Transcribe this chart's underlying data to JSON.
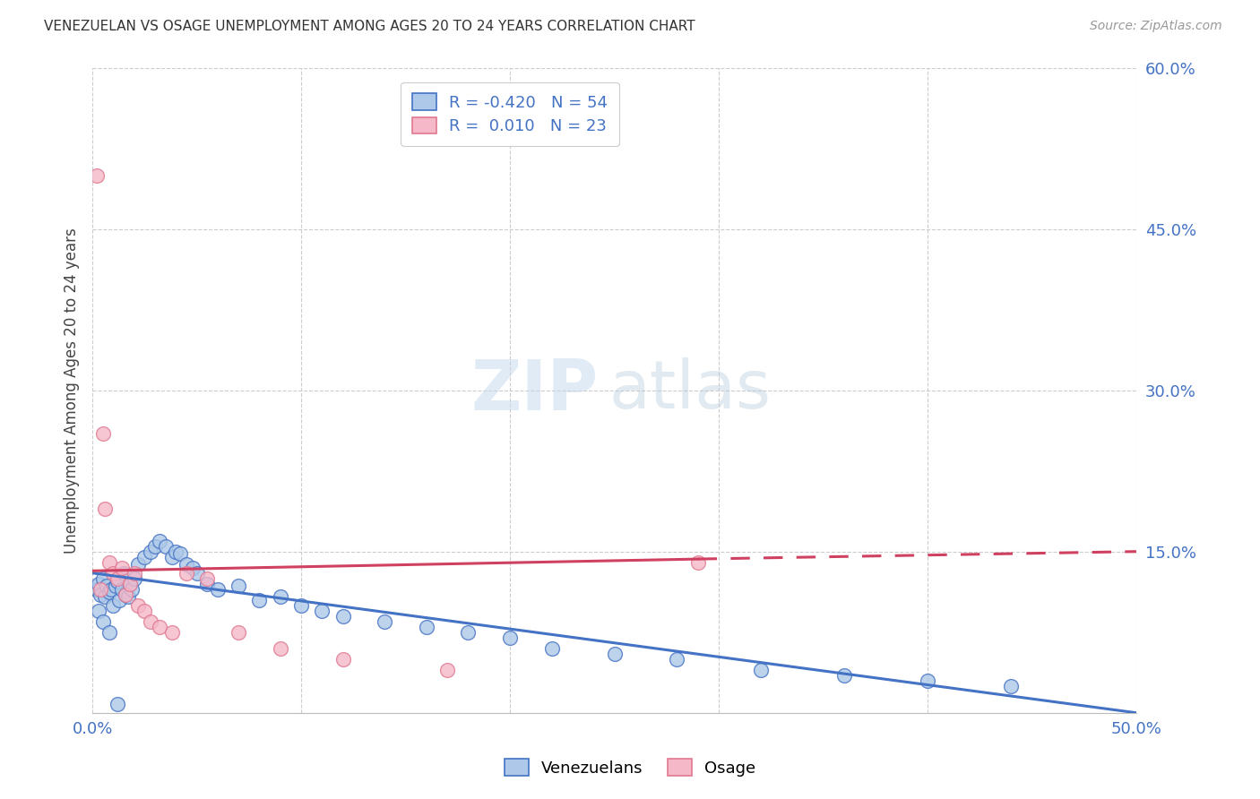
{
  "title": "VENEZUELAN VS OSAGE UNEMPLOYMENT AMONG AGES 20 TO 24 YEARS CORRELATION CHART",
  "source": "Source: ZipAtlas.com",
  "ylabel": "Unemployment Among Ages 20 to 24 years",
  "xlim": [
    0.0,
    0.5
  ],
  "ylim": [
    0.0,
    0.6
  ],
  "ytick_vals": [
    0.15,
    0.3,
    0.45,
    0.6
  ],
  "ytick_labels": [
    "15.0%",
    "30.0%",
    "45.0%",
    "60.0%"
  ],
  "venezuelan_color": "#adc8e8",
  "venezuelan_edge": "#4472c4",
  "osage_color": "#f5b8c8",
  "osage_edge": "#e07890",
  "trend_ven_color": "#4472c4",
  "trend_osage_color": "#d04060",
  "legend_r_ven": "-0.420",
  "legend_n_ven": "54",
  "legend_r_osage": "0.010",
  "legend_n_osage": "23",
  "venezuelan_x": [
    0.002,
    0.003,
    0.004,
    0.005,
    0.006,
    0.007,
    0.008,
    0.009,
    0.01,
    0.011,
    0.012,
    0.013,
    0.014,
    0.015,
    0.016,
    0.017,
    0.018,
    0.019,
    0.02,
    0.022,
    0.025,
    0.028,
    0.03,
    0.032,
    0.035,
    0.038,
    0.04,
    0.042,
    0.045,
    0.048,
    0.05,
    0.055,
    0.06,
    0.07,
    0.08,
    0.09,
    0.1,
    0.11,
    0.12,
    0.14,
    0.16,
    0.18,
    0.2,
    0.22,
    0.25,
    0.28,
    0.32,
    0.36,
    0.4,
    0.44,
    0.003,
    0.005,
    0.008,
    0.012
  ],
  "venezuelan_y": [
    0.115,
    0.12,
    0.11,
    0.125,
    0.108,
    0.118,
    0.112,
    0.115,
    0.1,
    0.118,
    0.122,
    0.105,
    0.115,
    0.13,
    0.11,
    0.108,
    0.12,
    0.115,
    0.125,
    0.138,
    0.145,
    0.15,
    0.155,
    0.16,
    0.155,
    0.145,
    0.15,
    0.148,
    0.138,
    0.135,
    0.13,
    0.12,
    0.115,
    0.118,
    0.105,
    0.108,
    0.1,
    0.095,
    0.09,
    0.085,
    0.08,
    0.075,
    0.07,
    0.06,
    0.055,
    0.05,
    0.04,
    0.035,
    0.03,
    0.025,
    0.095,
    0.085,
    0.075,
    0.008
  ],
  "osage_x": [
    0.002,
    0.004,
    0.005,
    0.006,
    0.008,
    0.01,
    0.012,
    0.014,
    0.016,
    0.018,
    0.02,
    0.022,
    0.025,
    0.028,
    0.032,
    0.038,
    0.045,
    0.055,
    0.07,
    0.09,
    0.12,
    0.17,
    0.29
  ],
  "osage_y": [
    0.5,
    0.115,
    0.26,
    0.19,
    0.14,
    0.13,
    0.125,
    0.135,
    0.11,
    0.12,
    0.13,
    0.1,
    0.095,
    0.085,
    0.08,
    0.075,
    0.13,
    0.125,
    0.075,
    0.06,
    0.05,
    0.04,
    0.14
  ],
  "trend_ven_x0": 0.0,
  "trend_ven_y0": 0.13,
  "trend_ven_x1": 0.5,
  "trend_ven_y1": 0.0,
  "trend_osage_solid_x0": 0.0,
  "trend_osage_solid_y0": 0.132,
  "trend_osage_solid_x1": 0.29,
  "trend_osage_solid_y1": 0.143,
  "trend_osage_dash_x0": 0.29,
  "trend_osage_dash_y0": 0.143,
  "trend_osage_dash_x1": 0.5,
  "trend_osage_dash_y1": 0.15
}
